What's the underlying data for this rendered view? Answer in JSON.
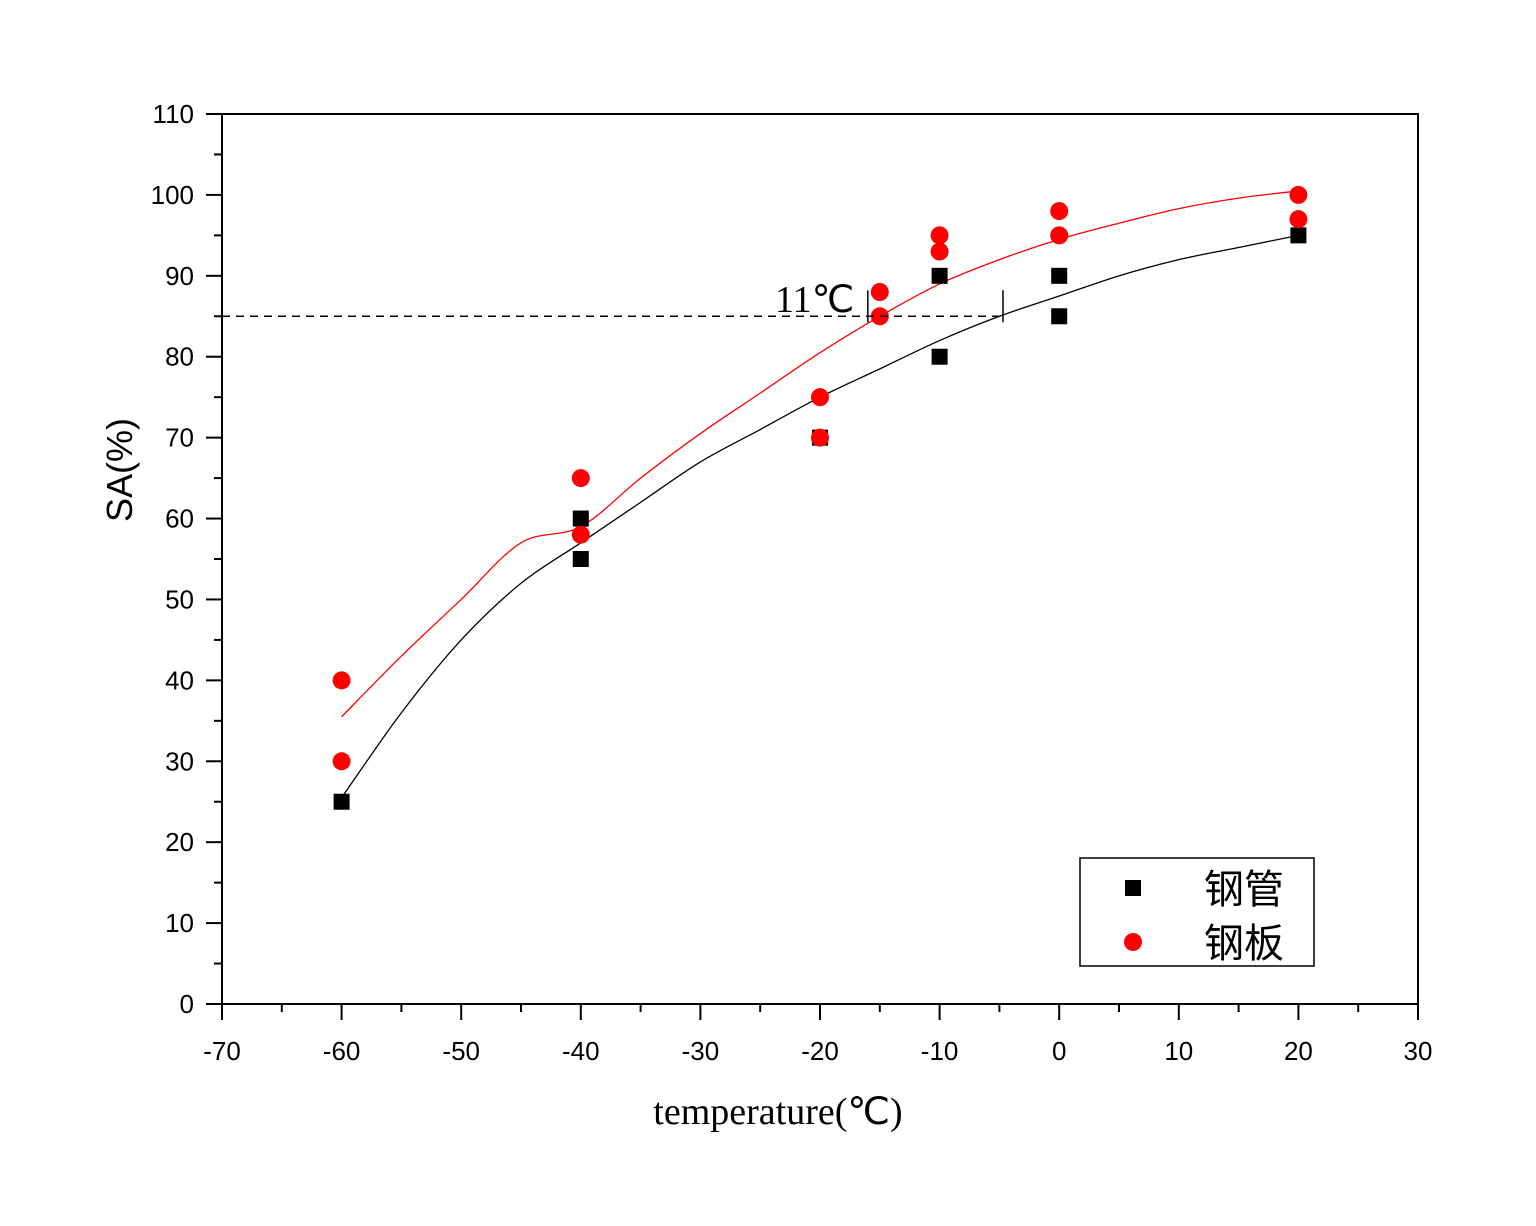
{
  "chart_data": {
    "type": "scatter",
    "xlabel": "temperature(℃)",
    "ylabel": "SA(%)",
    "xlim": [
      -70,
      30
    ],
    "ylim": [
      0,
      110
    ],
    "x_ticks": [
      -70,
      -60,
      -50,
      -40,
      -30,
      -20,
      -10,
      0,
      10,
      20,
      30
    ],
    "y_ticks": [
      0,
      10,
      20,
      30,
      40,
      50,
      60,
      70,
      80,
      90,
      100,
      110
    ],
    "legend_position": "bottom-right",
    "grid": false,
    "series": [
      {
        "name": "钢管",
        "marker": "square",
        "color": "#000000",
        "points": [
          [
            -60,
            25
          ],
          [
            -40,
            60
          ],
          [
            -40,
            55
          ],
          [
            -20,
            70
          ],
          [
            -10,
            90
          ],
          [
            -10,
            80
          ],
          [
            0,
            90
          ],
          [
            0,
            85
          ],
          [
            20,
            95
          ]
        ],
        "fit_curve": [
          [
            -60,
            25.5
          ],
          [
            -55,
            36
          ],
          [
            -50,
            45
          ],
          [
            -45,
            52
          ],
          [
            -40,
            57
          ],
          [
            -35,
            62
          ],
          [
            -30,
            67
          ],
          [
            -25,
            71
          ],
          [
            -20,
            75
          ],
          [
            -15,
            78.5
          ],
          [
            -10,
            82
          ],
          [
            -5,
            85
          ],
          [
            0,
            87.5
          ],
          [
            5,
            90
          ],
          [
            10,
            92
          ],
          [
            15,
            93.5
          ],
          [
            20,
            95
          ]
        ]
      },
      {
        "name": "钢板",
        "marker": "circle",
        "color": "#ff0000",
        "points": [
          [
            -60,
            40
          ],
          [
            -60,
            30
          ],
          [
            -40,
            65
          ],
          [
            -40,
            58
          ],
          [
            -20,
            75
          ],
          [
            -20,
            70
          ],
          [
            -15,
            88
          ],
          [
            -15,
            85
          ],
          [
            -10,
            95
          ],
          [
            -10,
            93
          ],
          [
            0,
            98
          ],
          [
            0,
            95
          ],
          [
            20,
            100
          ],
          [
            20,
            97
          ]
        ],
        "fit_curve": [
          [
            -60,
            35.5
          ],
          [
            -55,
            43
          ],
          [
            -50,
            50
          ],
          [
            -45,
            57
          ],
          [
            -40,
            59
          ],
          [
            -35,
            65
          ],
          [
            -30,
            70.5
          ],
          [
            -25,
            75.5
          ],
          [
            -20,
            80.5
          ],
          [
            -15,
            85
          ],
          [
            -10,
            89
          ],
          [
            -5,
            92
          ],
          [
            0,
            94.5
          ],
          [
            5,
            96.5
          ],
          [
            10,
            98.3
          ],
          [
            15,
            99.6
          ],
          [
            20,
            100.5
          ]
        ]
      }
    ],
    "reference_line": {
      "y": 85,
      "x_from": -70,
      "x_to": -4.7,
      "style": "dashed"
    },
    "annotations": [
      {
        "text": "11℃",
        "x": -22,
        "y": 85,
        "markers_x": [
          -16,
          -4.7
        ]
      }
    ]
  }
}
